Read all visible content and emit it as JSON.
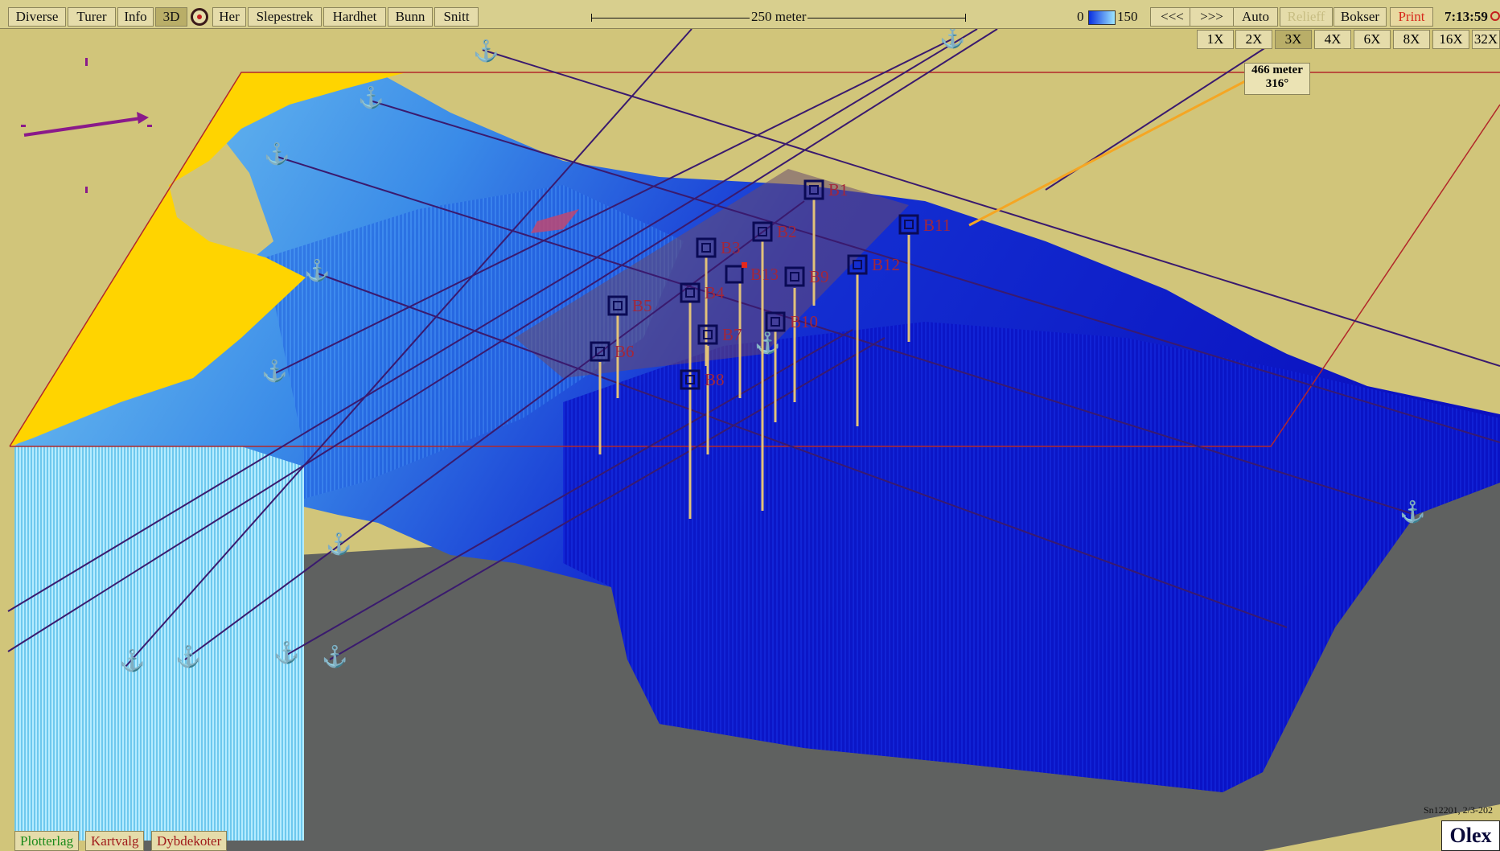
{
  "toolbar": {
    "buttons": [
      "Diverse",
      "Turer",
      "Info",
      "3D",
      "Her",
      "Slepestrek",
      "Hardhet",
      "Bunn",
      "Snitt"
    ],
    "scale_label": "250 meter",
    "depth_min": "0",
    "depth_max": "150",
    "prev": "<<<",
    "next": ">>>",
    "auto": "Auto",
    "relieff": "Relieff",
    "bokser": "Bokser",
    "print": "Print",
    "clock": "7:13:59"
  },
  "zoom_levels": [
    "1X",
    "2X",
    "3X",
    "4X",
    "6X",
    "8X",
    "16X",
    "32X"
  ],
  "zoom_active": "3X",
  "measure": {
    "distance": "466 meter",
    "bearing": "316°"
  },
  "markers": [
    "B1",
    "B2",
    "B3",
    "B4",
    "B5",
    "B6",
    "B7",
    "B8",
    "B9",
    "B10",
    "B11",
    "B12",
    "B13"
  ],
  "bottom_tabs": [
    "Plotterlag",
    "Kartvalg",
    "Dybdekoter"
  ],
  "status": "Sn12201, 2/3-202",
  "logo": "Olex",
  "colors": {
    "land": "#ffd400",
    "background": "#d1c57a",
    "deep": "#0a12c8",
    "shallow": "#7fd6f0",
    "accent": "#e5281c"
  },
  "icons": [
    "circle-target-icon",
    "anchor-icon",
    "direction-arrow-icon"
  ]
}
